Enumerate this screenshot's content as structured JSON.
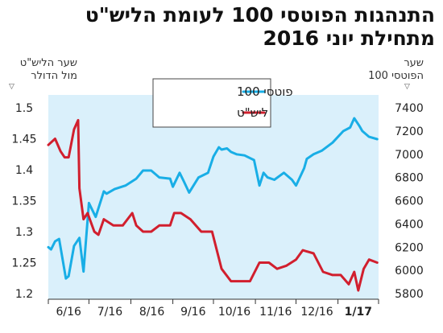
{
  "title_line1": "התנהגות הפוטסי 100 לעומת הליש\"ט",
  "title_line2": "מתחילת יוני 2016",
  "left_axis_caption_l1": "שער הליש\"ט",
  "left_axis_caption_l2": "מול הדולר",
  "right_axis_caption_l1": "שער",
  "right_axis_caption_l2": "הפוטסי 100",
  "colors": {
    "ftse": "#19aee6",
    "gbp": "#d11f2e",
    "plot_bg": "#daf0fb"
  },
  "chart_data": {
    "type": "line",
    "x_labels": [
      "6/16",
      "7/16",
      "8/16",
      "9/16",
      "10/16",
      "11/16",
      "12/16",
      "1/17"
    ],
    "y_left": {
      "ticks": [
        "1.2",
        "1.25",
        "1.3",
        "1.35",
        "1.4",
        "1.45",
        "1.5"
      ],
      "range": [
        1.2,
        1.5
      ]
    },
    "y_right": {
      "ticks": [
        "5800",
        "6000",
        "6200",
        "6400",
        "6600",
        "6800",
        "7000",
        "7200",
        "7400"
      ],
      "range": [
        5800,
        7400
      ]
    },
    "series": [
      {
        "name": "פוטסי 100",
        "axis": "right",
        "points": [
          [
            "6/1",
            6200
          ],
          [
            "6/3",
            6180
          ],
          [
            "6/6",
            6250
          ],
          [
            "6/9",
            6270
          ],
          [
            "6/14",
            5930
          ],
          [
            "6/16",
            5950
          ],
          [
            "6/20",
            6210
          ],
          [
            "6/24",
            6280
          ],
          [
            "6/27",
            5990
          ],
          [
            "7/1",
            6580
          ],
          [
            "7/6",
            6460
          ],
          [
            "7/12",
            6680
          ],
          [
            "7/14",
            6660
          ],
          [
            "7/20",
            6700
          ],
          [
            "7/28",
            6730
          ],
          [
            "8/5",
            6790
          ],
          [
            "8/10",
            6860
          ],
          [
            "8/16",
            6860
          ],
          [
            "8/22",
            6800
          ],
          [
            "8/30",
            6790
          ],
          [
            "9/1",
            6720
          ],
          [
            "9/6",
            6840
          ],
          [
            "9/9",
            6770
          ],
          [
            "9/13",
            6670
          ],
          [
            "9/20",
            6800
          ],
          [
            "9/27",
            6840
          ],
          [
            "10/1",
            6980
          ],
          [
            "10/5",
            7060
          ],
          [
            "10/7",
            7040
          ],
          [
            "10/11",
            7050
          ],
          [
            "10/14",
            7020
          ],
          [
            "10/18",
            7000
          ],
          [
            "10/24",
            6990
          ],
          [
            "10/31",
            6950
          ],
          [
            "11/4",
            6730
          ],
          [
            "11/7",
            6840
          ],
          [
            "11/10",
            6800
          ],
          [
            "11/15",
            6780
          ],
          [
            "11/22",
            6840
          ],
          [
            "11/28",
            6780
          ],
          [
            "12/1",
            6730
          ],
          [
            "12/7",
            6880
          ],
          [
            "12/9",
            6960
          ],
          [
            "12/14",
            7000
          ],
          [
            "12/20",
            7030
          ],
          [
            "12/28",
            7100
          ],
          [
            "1/5",
            7200
          ],
          [
            "1/10",
            7230
          ],
          [
            "1/13",
            7310
          ],
          [
            "1/17",
            7240
          ],
          [
            "1/19",
            7200
          ],
          [
            "1/24",
            7150
          ],
          [
            "1/30",
            7130
          ]
        ]
      },
      {
        "name": "ליש\"ט",
        "axis": "left",
        "points": [
          [
            "6/1",
            1.44
          ],
          [
            "6/6",
            1.45
          ],
          [
            "6/10",
            1.43
          ],
          [
            "6/13",
            1.42
          ],
          [
            "6/16",
            1.42
          ],
          [
            "6/20",
            1.465
          ],
          [
            "6/23",
            1.48
          ],
          [
            "6/24",
            1.37
          ],
          [
            "6/27",
            1.32
          ],
          [
            "6/30",
            1.33
          ],
          [
            "7/5",
            1.3
          ],
          [
            "7/8",
            1.295
          ],
          [
            "7/12",
            1.32
          ],
          [
            "7/19",
            1.31
          ],
          [
            "7/26",
            1.31
          ],
          [
            "8/2",
            1.33
          ],
          [
            "8/5",
            1.31
          ],
          [
            "8/10",
            1.3
          ],
          [
            "8/16",
            1.3
          ],
          [
            "8/22",
            1.31
          ],
          [
            "8/30",
            1.31
          ],
          [
            "9/2",
            1.33
          ],
          [
            "9/7",
            1.33
          ],
          [
            "9/14",
            1.32
          ],
          [
            "9/22",
            1.3
          ],
          [
            "9/30",
            1.3
          ],
          [
            "10/7",
            1.24
          ],
          [
            "10/14",
            1.22
          ],
          [
            "10/21",
            1.22
          ],
          [
            "10/28",
            1.22
          ],
          [
            "11/4",
            1.25
          ],
          [
            "11/11",
            1.25
          ],
          [
            "11/17",
            1.24
          ],
          [
            "11/24",
            1.245
          ],
          [
            "12/1",
            1.255
          ],
          [
            "12/6",
            1.27
          ],
          [
            "12/14",
            1.265
          ],
          [
            "12/21",
            1.235
          ],
          [
            "12/28",
            1.23
          ],
          [
            "1/3",
            1.23
          ],
          [
            "1/9",
            1.215
          ],
          [
            "1/13",
            1.235
          ],
          [
            "1/16",
            1.205
          ],
          [
            "1/20",
            1.24
          ],
          [
            "1/24",
            1.255
          ],
          [
            "1/30",
            1.25
          ]
        ]
      }
    ],
    "legend_position": "top-center"
  }
}
